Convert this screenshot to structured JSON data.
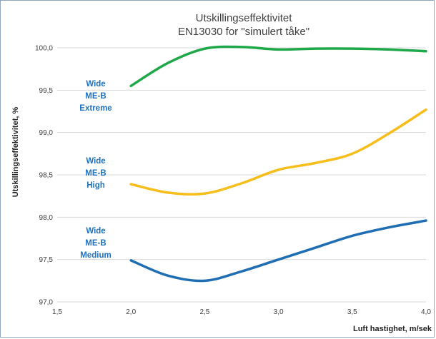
{
  "chart_data": {
    "type": "line",
    "title": [
      "Utskillingseffektivitet",
      "EN13030 for \"simulert tåke\""
    ],
    "xlabel": "Luft hastighet, m/sek",
    "ylabel": "Utskillingseffektivitet, %",
    "xlim": [
      1.5,
      4.0
    ],
    "ylim": [
      97.0,
      100.0
    ],
    "xticks": [
      "1,5",
      "2,0",
      "2,5",
      "3,0",
      "3,5",
      "4,0"
    ],
    "yticks": [
      "97,0",
      "97,5",
      "98,0",
      "98,5",
      "99,0",
      "99,5",
      "100,0"
    ],
    "grid": "horizontal",
    "series": [
      {
        "label_lines": [
          "Wide",
          "ME-B",
          "Extreme"
        ],
        "color": "#1fa84a",
        "label_color": "#1f72bf",
        "x": [
          2.0,
          2.25,
          2.5,
          2.75,
          3.0,
          3.25,
          3.5,
          3.75,
          4.0
        ],
        "y": [
          99.55,
          99.82,
          99.99,
          100.01,
          99.98,
          99.99,
          99.99,
          99.98,
          99.96
        ]
      },
      {
        "label_lines": [
          "Wide",
          "ME-B",
          "High"
        ],
        "color": "#f7bd1a",
        "label_color": "#1f72bf",
        "x": [
          2.0,
          2.25,
          2.5,
          2.75,
          3.0,
          3.25,
          3.5,
          3.75,
          4.0
        ],
        "y": [
          98.39,
          98.29,
          98.28,
          98.4,
          98.56,
          98.64,
          98.75,
          98.99,
          99.27
        ]
      },
      {
        "label_lines": [
          "Wide",
          "ME-B",
          "Medium"
        ],
        "color": "#1f6db3",
        "label_color": "#1f72bf",
        "x": [
          2.0,
          2.25,
          2.5,
          2.75,
          3.0,
          3.25,
          3.5,
          3.75,
          4.0
        ],
        "y": [
          97.49,
          97.31,
          97.25,
          97.36,
          97.5,
          97.64,
          97.78,
          97.88,
          97.96
        ]
      }
    ]
  }
}
